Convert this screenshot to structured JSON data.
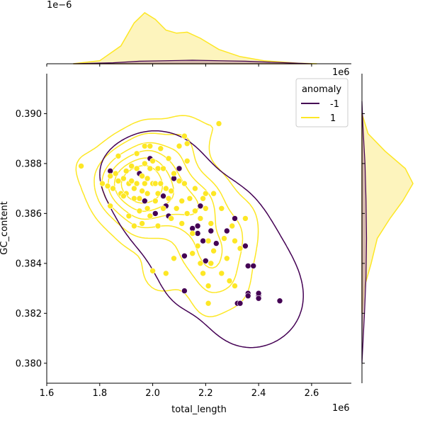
{
  "chart_data": {
    "type": "scatter",
    "subtype": "jointplot-kde",
    "xlabel": "total_length",
    "ylabel": "GC_content",
    "x_offset_label": "1e6",
    "y_offset_label": "",
    "x_ticks": [
      "1.6",
      "1.8",
      "2.0",
      "2.2",
      "2.4",
      "2.6"
    ],
    "y_ticks": [
      "0.380",
      "0.382",
      "0.384",
      "0.386",
      "0.388",
      "0.390"
    ],
    "xlim": [
      1.6,
      2.75
    ],
    "ylim": [
      0.3792,
      0.3916
    ],
    "top_margin_offset_label": "1e−6",
    "right_margin_offset_label": "1e6",
    "legend": {
      "title": "anomaly",
      "entries": [
        {
          "label": "-1",
          "color": "#440154"
        },
        {
          "label": "1",
          "color": "#fde725"
        }
      ],
      "position": "upper-right"
    },
    "colors": {
      "anomaly_neg": "#440154",
      "anomaly_pos": "#fde725",
      "pos_fill": "#fdf4bd",
      "neg_fill": "#c9a9a6"
    },
    "series": [
      {
        "name": "-1",
        "points": [
          [
            1.84,
            0.3877
          ],
          [
            1.95,
            0.3876
          ],
          [
            1.99,
            0.3882
          ],
          [
            1.97,
            0.3865
          ],
          [
            2.01,
            0.386
          ],
          [
            2.05,
            0.3863
          ],
          [
            2.06,
            0.3859
          ],
          [
            2.08,
            0.3874
          ],
          [
            2.12,
            0.3843
          ],
          [
            2.12,
            0.3829
          ],
          [
            2.15,
            0.3854
          ],
          [
            2.17,
            0.3852
          ],
          [
            2.17,
            0.3855
          ],
          [
            2.18,
            0.3863
          ],
          [
            2.19,
            0.3849
          ],
          [
            2.2,
            0.3841
          ],
          [
            2.24,
            0.3848
          ],
          [
            2.28,
            0.3853
          ],
          [
            2.31,
            0.3858
          ],
          [
            2.32,
            0.3824
          ],
          [
            2.33,
            0.3824
          ],
          [
            2.35,
            0.3847
          ],
          [
            2.36,
            0.3839
          ],
          [
            2.36,
            0.3828
          ],
          [
            2.36,
            0.3827
          ],
          [
            2.4,
            0.3827
          ],
          [
            2.4,
            0.3828
          ],
          [
            2.4,
            0.3826
          ],
          [
            2.48,
            0.3825
          ],
          [
            2.1,
            0.3878
          ],
          [
            2.22,
            0.3853
          ],
          [
            2.04,
            0.3867
          ],
          [
            2.38,
            0.3839
          ]
        ]
      },
      {
        "name": "1",
        "points": [
          [
            1.73,
            0.3879
          ],
          [
            1.81,
            0.3872
          ],
          [
            1.83,
            0.3871
          ],
          [
            1.84,
            0.3863
          ],
          [
            1.84,
            0.3875
          ],
          [
            1.85,
            0.387
          ],
          [
            1.86,
            0.3876
          ],
          [
            1.87,
            0.3873
          ],
          [
            1.87,
            0.3883
          ],
          [
            1.88,
            0.3868
          ],
          [
            1.89,
            0.3874
          ],
          [
            1.9,
            0.3868
          ],
          [
            1.9,
            0.3877
          ],
          [
            1.91,
            0.3872
          ],
          [
            1.91,
            0.3859
          ],
          [
            1.92,
            0.3879
          ],
          [
            1.92,
            0.3873
          ],
          [
            1.93,
            0.3866
          ],
          [
            1.93,
            0.387
          ],
          [
            1.94,
            0.3884
          ],
          [
            1.94,
            0.3878
          ],
          [
            1.94,
            0.3872
          ],
          [
            1.95,
            0.3861
          ],
          [
            1.95,
            0.3866
          ],
          [
            1.96,
            0.3875
          ],
          [
            1.96,
            0.3869
          ],
          [
            1.96,
            0.3856
          ],
          [
            1.97,
            0.3887
          ],
          [
            1.97,
            0.388
          ],
          [
            1.97,
            0.3872
          ],
          [
            1.98,
            0.3862
          ],
          [
            1.98,
            0.3868
          ],
          [
            1.98,
            0.3874
          ],
          [
            1.99,
            0.3887
          ],
          [
            1.99,
            0.3878
          ],
          [
            2.0,
            0.3881
          ],
          [
            2.0,
            0.3872
          ],
          [
            2.0,
            0.3837
          ],
          [
            2.01,
            0.3865
          ],
          [
            2.01,
            0.3872
          ],
          [
            2.02,
            0.3878
          ],
          [
            2.02,
            0.3868
          ],
          [
            2.03,
            0.3886
          ],
          [
            2.03,
            0.3872
          ],
          [
            2.04,
            0.3862
          ],
          [
            2.04,
            0.3878
          ],
          [
            2.05,
            0.387
          ],
          [
            2.05,
            0.3836
          ],
          [
            2.06,
            0.3866
          ],
          [
            2.06,
            0.3882
          ],
          [
            2.07,
            0.3858
          ],
          [
            2.07,
            0.3869
          ],
          [
            2.08,
            0.3842
          ],
          [
            2.08,
            0.3876
          ],
          [
            2.09,
            0.3862
          ],
          [
            2.1,
            0.3873
          ],
          [
            2.1,
            0.3887
          ],
          [
            2.11,
            0.3865
          ],
          [
            2.11,
            0.3856
          ],
          [
            2.12,
            0.3872
          ],
          [
            2.12,
            0.3891
          ],
          [
            2.13,
            0.3881
          ],
          [
            2.13,
            0.386
          ],
          [
            2.13,
            0.3888
          ],
          [
            2.14,
            0.3866
          ],
          [
            2.15,
            0.3852
          ],
          [
            2.15,
            0.3844
          ],
          [
            2.16,
            0.387
          ],
          [
            2.16,
            0.3861
          ],
          [
            2.17,
            0.3847
          ],
          [
            2.18,
            0.3858
          ],
          [
            2.18,
            0.384
          ],
          [
            2.19,
            0.3866
          ],
          [
            2.19,
            0.3836
          ],
          [
            2.2,
            0.3862
          ],
          [
            2.2,
            0.3868
          ],
          [
            2.21,
            0.3849
          ],
          [
            2.21,
            0.3831
          ],
          [
            2.22,
            0.3856
          ],
          [
            2.22,
            0.384
          ],
          [
            2.23,
            0.3868
          ],
          [
            2.23,
            0.3845
          ],
          [
            2.25,
            0.3896
          ],
          [
            2.26,
            0.3862
          ],
          [
            2.26,
            0.3836
          ],
          [
            2.27,
            0.385
          ],
          [
            2.28,
            0.3842
          ],
          [
            2.29,
            0.3833
          ],
          [
            2.3,
            0.3855
          ],
          [
            2.31,
            0.3849
          ],
          [
            2.33,
            0.3846
          ],
          [
            2.35,
            0.3858
          ],
          [
            2.21,
            0.3824
          ],
          [
            2.31,
            0.3831
          ],
          [
            1.99,
            0.3859
          ],
          [
            2.02,
            0.3855
          ],
          [
            1.93,
            0.3855
          ],
          [
            1.89,
            0.3867
          ]
        ]
      }
    ],
    "marginal_x": {
      "points_pos": [
        [
          1.7,
          0.0
        ],
        [
          1.8,
          0.06
        ],
        [
          1.88,
          0.35
        ],
        [
          1.93,
          0.8
        ],
        [
          1.97,
          1.0
        ],
        [
          2.01,
          0.87
        ],
        [
          2.05,
          0.66
        ],
        [
          2.09,
          0.6
        ],
        [
          2.13,
          0.62
        ],
        [
          2.18,
          0.5
        ],
        [
          2.25,
          0.28
        ],
        [
          2.33,
          0.14
        ],
        [
          2.42,
          0.06
        ],
        [
          2.55,
          0.01
        ],
        [
          2.62,
          0.0
        ]
      ],
      "points_neg": [
        [
          1.7,
          0.0
        ],
        [
          1.85,
          0.02
        ],
        [
          1.95,
          0.05
        ],
        [
          2.05,
          0.06
        ],
        [
          2.15,
          0.07
        ],
        [
          2.25,
          0.06
        ],
        [
          2.35,
          0.05
        ],
        [
          2.45,
          0.03
        ],
        [
          2.6,
          0.0
        ]
      ]
    },
    "marginal_y": {
      "points_pos": [
        [
          0.382,
          0.0
        ],
        [
          0.383,
          0.04
        ],
        [
          0.384,
          0.18
        ],
        [
          0.385,
          0.3
        ],
        [
          0.3858,
          0.55
        ],
        [
          0.3865,
          0.8
        ],
        [
          0.3872,
          1.0
        ],
        [
          0.3878,
          0.85
        ],
        [
          0.3885,
          0.45
        ],
        [
          0.3892,
          0.12
        ],
        [
          0.39,
          0.0
        ]
      ],
      "points_neg": [
        [
          0.38,
          0.0
        ],
        [
          0.382,
          0.05
        ],
        [
          0.3835,
          0.08
        ],
        [
          0.385,
          0.09
        ],
        [
          0.3865,
          0.08
        ],
        [
          0.388,
          0.06
        ],
        [
          0.3895,
          0.02
        ],
        [
          0.3905,
          0.0
        ]
      ]
    }
  }
}
